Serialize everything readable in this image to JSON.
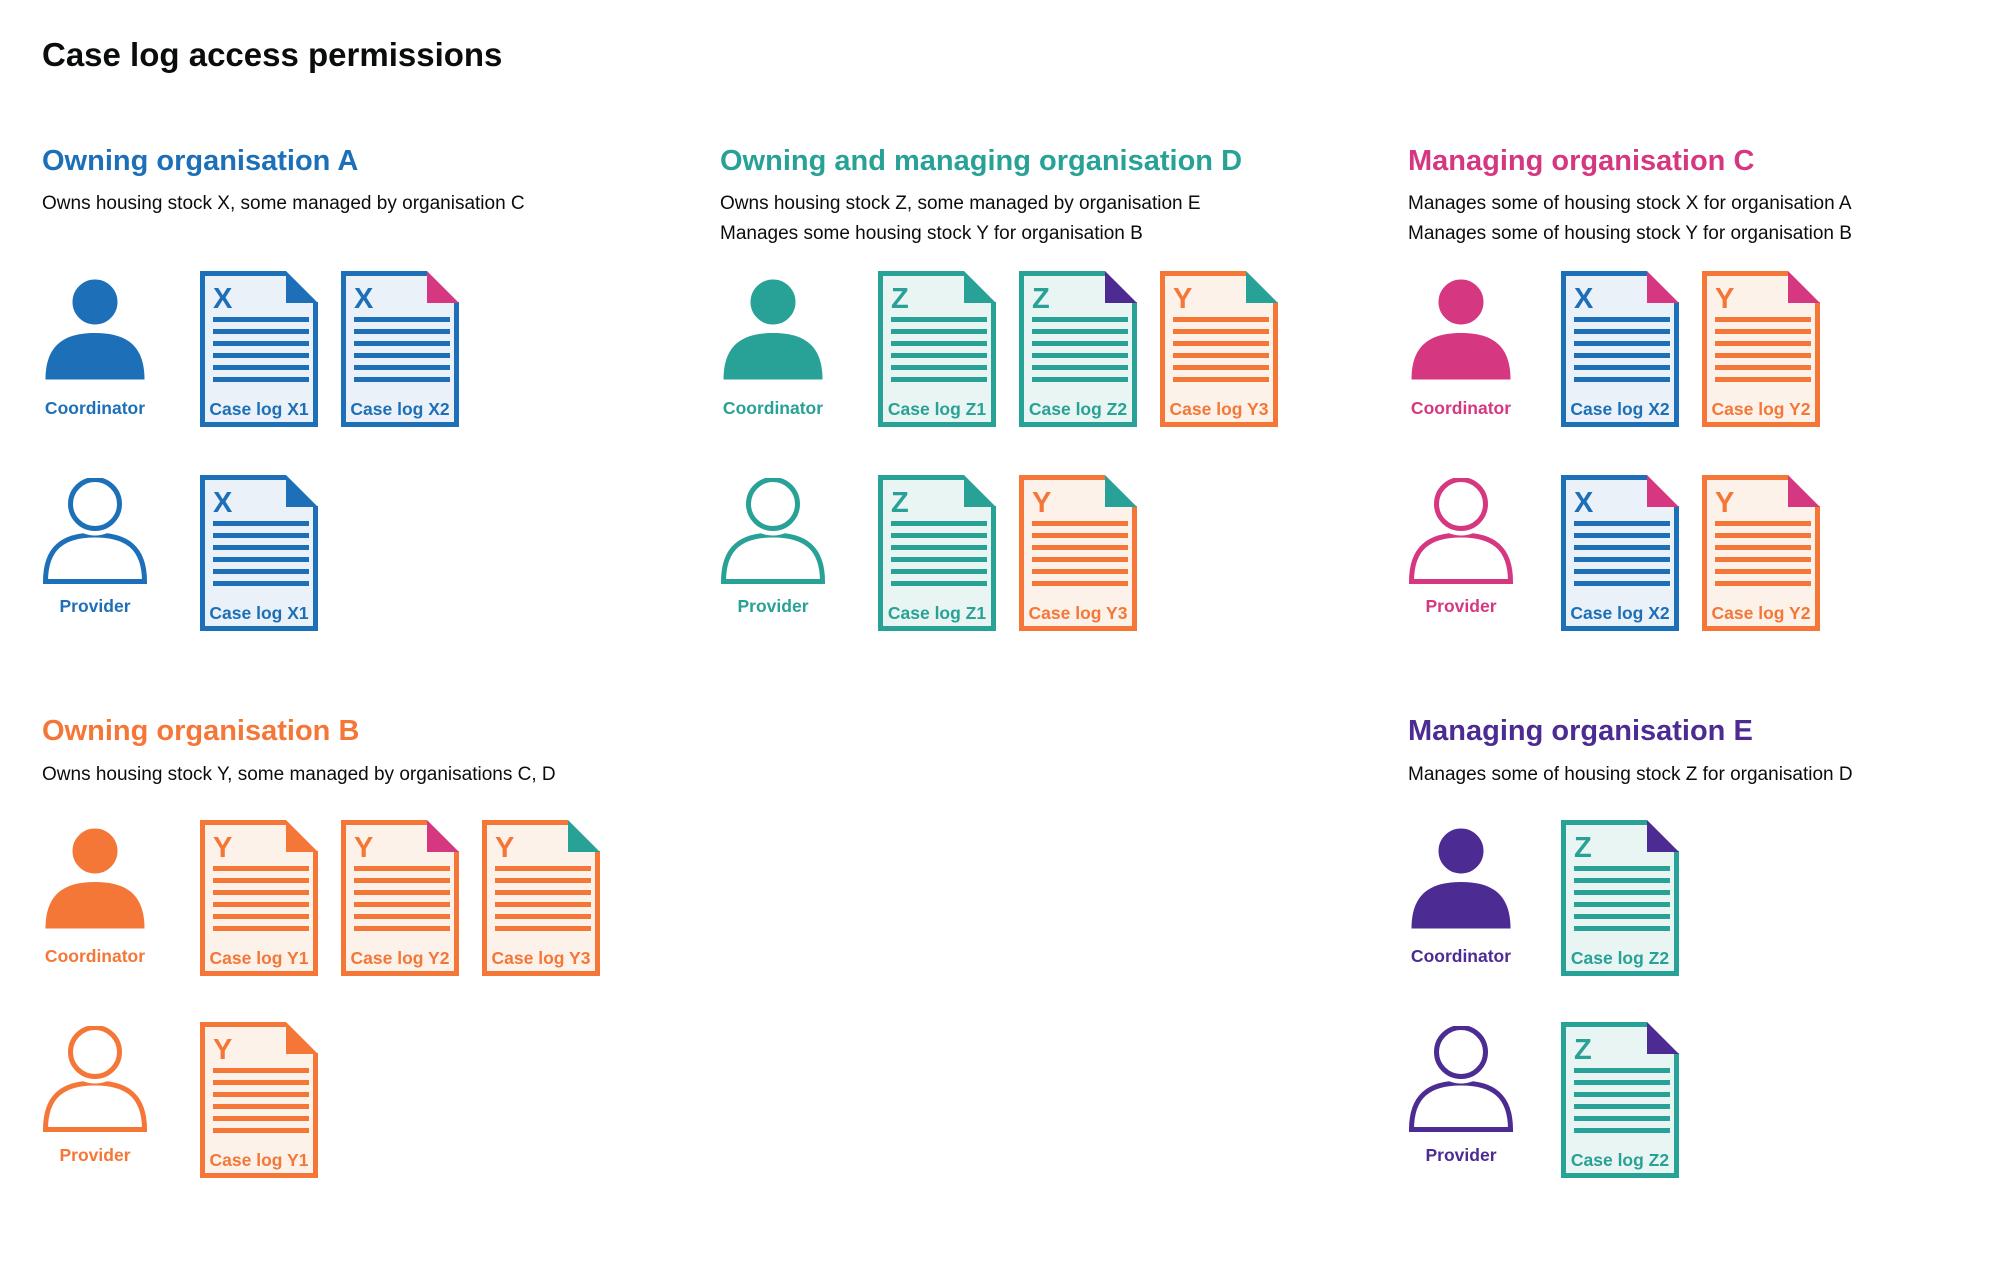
{
  "page_title": "Case log access permissions",
  "colors": {
    "blue": "#1d70b8",
    "teal": "#28a197",
    "pink": "#d53880",
    "orange": "#f47738",
    "purple": "#4c2c92",
    "ink": "#0b0c0c",
    "tint_blue": "#ebf1f9",
    "tint_teal": "#e9f5f2",
    "tint_orange": "#fdf2e9"
  },
  "roles": {
    "coordinator_label": "Coordinator",
    "provider_label": "Provider"
  },
  "sections": [
    {
      "id": "org-a",
      "heading": "Owning organisation A",
      "color": "blue",
      "description": [
        "Owns housing stock X, some managed by organisation C"
      ],
      "rows": [
        {
          "role": "coordinator",
          "person": "filled",
          "docs": [
            {
              "letter": "X",
              "label": "Case log X1",
              "doc_color": "blue",
              "fold_color": "blue"
            },
            {
              "letter": "X",
              "label": "Case log X2",
              "doc_color": "blue",
              "fold_color": "pink"
            }
          ]
        },
        {
          "role": "provider",
          "person": "outline",
          "docs": [
            {
              "letter": "X",
              "label": "Case log X1",
              "doc_color": "blue",
              "fold_color": "blue"
            }
          ]
        }
      ]
    },
    {
      "id": "org-d",
      "heading": "Owning and managing organisation D",
      "color": "teal",
      "description": [
        "Owns housing stock Z, some managed by organisation E",
        "Manages some housing stock Y for organisation B"
      ],
      "rows": [
        {
          "role": "coordinator",
          "person": "filled",
          "docs": [
            {
              "letter": "Z",
              "label": "Case log Z1",
              "doc_color": "teal",
              "fold_color": "teal"
            },
            {
              "letter": "Z",
              "label": "Case log Z2",
              "doc_color": "teal",
              "fold_color": "purple"
            },
            {
              "letter": "Y",
              "label": "Case log Y3",
              "doc_color": "orange",
              "fold_color": "teal"
            }
          ]
        },
        {
          "role": "provider",
          "person": "outline",
          "docs": [
            {
              "letter": "Z",
              "label": "Case log Z1",
              "doc_color": "teal",
              "fold_color": "teal"
            },
            {
              "letter": "Y",
              "label": "Case log Y3",
              "doc_color": "orange",
              "fold_color": "teal"
            }
          ]
        }
      ]
    },
    {
      "id": "org-c",
      "heading": "Managing organisation C",
      "color": "pink",
      "description": [
        "Manages some of housing stock X for organisation A",
        "Manages some of housing stock Y for organisation B"
      ],
      "rows": [
        {
          "role": "coordinator",
          "person": "filled",
          "docs": [
            {
              "letter": "X",
              "label": "Case log X2",
              "doc_color": "blue",
              "fold_color": "pink"
            },
            {
              "letter": "Y",
              "label": "Case log Y2",
              "doc_color": "orange",
              "fold_color": "pink"
            }
          ]
        },
        {
          "role": "provider",
          "person": "outline",
          "docs": [
            {
              "letter": "X",
              "label": "Case log X2",
              "doc_color": "blue",
              "fold_color": "pink"
            },
            {
              "letter": "Y",
              "label": "Case log Y2",
              "doc_color": "orange",
              "fold_color": "pink"
            }
          ]
        }
      ]
    },
    {
      "id": "org-b",
      "heading": "Owning organisation B",
      "color": "orange",
      "description": [
        "Owns housing stock Y, some managed by organisations C, D"
      ],
      "rows": [
        {
          "role": "coordinator",
          "person": "filled",
          "docs": [
            {
              "letter": "Y",
              "label": "Case log Y1",
              "doc_color": "orange",
              "fold_color": "orange"
            },
            {
              "letter": "Y",
              "label": "Case log Y2",
              "doc_color": "orange",
              "fold_color": "pink"
            },
            {
              "letter": "Y",
              "label": "Case log Y3",
              "doc_color": "orange",
              "fold_color": "teal"
            }
          ]
        },
        {
          "role": "provider",
          "person": "outline",
          "docs": [
            {
              "letter": "Y",
              "label": "Case log Y1",
              "doc_color": "orange",
              "fold_color": "orange"
            }
          ]
        }
      ]
    },
    {
      "id": "org-e",
      "heading": "Managing organisation E",
      "color": "purple",
      "description": [
        "Manages some of housing stock Z for organisation D"
      ],
      "rows": [
        {
          "role": "coordinator",
          "person": "filled",
          "docs": [
            {
              "letter": "Z",
              "label": "Case log Z2",
              "doc_color": "teal",
              "fold_color": "purple"
            }
          ]
        },
        {
          "role": "provider",
          "person": "outline",
          "docs": [
            {
              "letter": "Z",
              "label": "Case log Z2",
              "doc_color": "teal",
              "fold_color": "purple"
            }
          ]
        }
      ]
    }
  ]
}
